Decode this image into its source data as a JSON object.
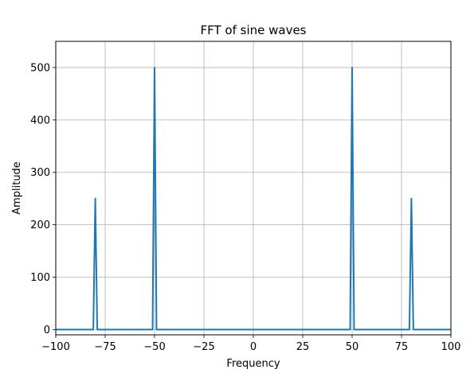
{
  "chart_data": {
    "type": "line",
    "title": "FFT of sine waves",
    "xlabel": "Frequency",
    "ylabel": "Amplitude",
    "xlim": [
      -100,
      100
    ],
    "ylim": [
      -10,
      550
    ],
    "xticks": [
      -100,
      -75,
      -50,
      -25,
      0,
      25,
      50,
      75,
      100
    ],
    "xtick_labels": [
      "−100",
      "−75",
      "−50",
      "−25",
      "0",
      "25",
      "50",
      "75",
      "100"
    ],
    "yticks": [
      0,
      100,
      200,
      300,
      400,
      500
    ],
    "ytick_labels": [
      "0",
      "100",
      "200",
      "300",
      "400",
      "500"
    ],
    "grid": true,
    "series": [
      {
        "color": "#1f77b4",
        "x": [
          -100,
          -81,
          -80,
          -79,
          -51,
          -50,
          -49,
          49,
          50,
          51,
          79,
          80,
          81,
          100
        ],
        "y": [
          0,
          0,
          250,
          0,
          0,
          500,
          0,
          0,
          500,
          0,
          0,
          250,
          0,
          0
        ]
      }
    ]
  }
}
